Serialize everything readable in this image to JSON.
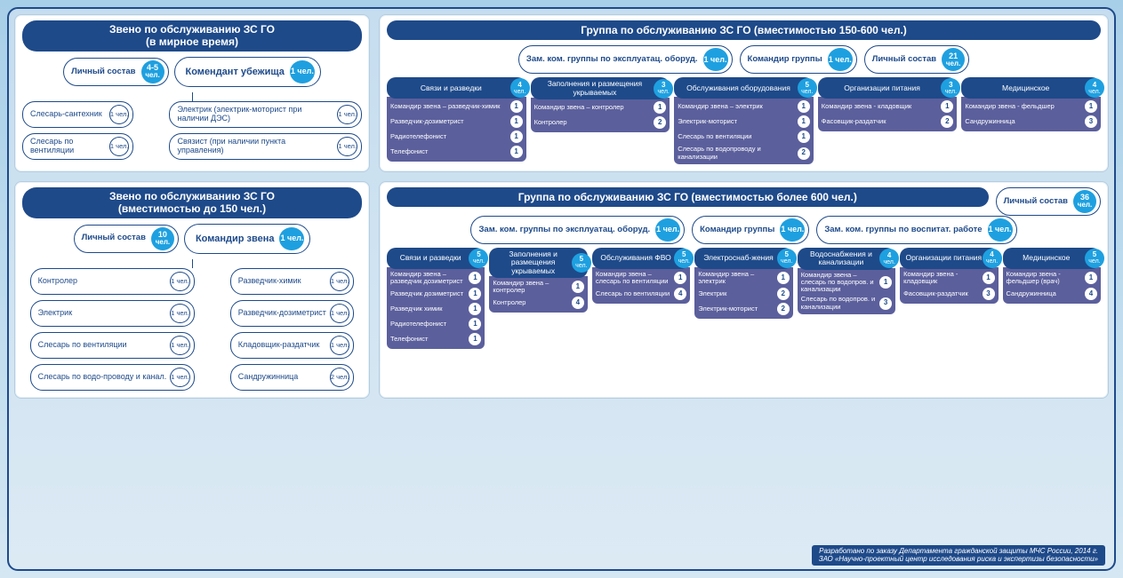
{
  "colors": {
    "header_bg": "#1e4a8a",
    "badge_bg": "#1ea0e0",
    "subbody_bg": "#5b5f9c",
    "panel_bg": "#ffffff",
    "page_bg_top": "#a8cfe8",
    "page_bg_bottom": "#d4e7f3"
  },
  "panel_a": {
    "title_l1": "Звено по обслуживанию ЗС ГО",
    "title_l2": "(в мирное время)",
    "staff_label": "Личный состав",
    "staff_count": "4-5",
    "staff_unit": "чел.",
    "commander": "Комендант убежища",
    "commander_count": "1 чел.",
    "left": [
      {
        "label": "Слесарь-сантехник",
        "count": "1 чел."
      },
      {
        "label": "Слесарь по вентиляции",
        "count": "1 чел."
      }
    ],
    "right": [
      {
        "label": "Электрик (электрик-моторист при наличии ДЭС)",
        "count": "1 чел."
      },
      {
        "label": "Связист (при наличии пункта управления)",
        "count": "1 чел."
      }
    ]
  },
  "panel_b": {
    "title": "Группа по обслуживанию ЗС ГО (вместимостью 150-600 чел.)",
    "top": [
      {
        "label": "Зам. ком. группы по эксплуатац. оборуд.",
        "count": "1 чел."
      },
      {
        "label": "Командир группы",
        "count": "1 чел."
      },
      {
        "label": "Личный состав",
        "count": "21",
        "unit": "чел."
      }
    ],
    "subs": [
      {
        "name": "Связи и разведки",
        "cnt": "4 чел.",
        "items": [
          {
            "t": "Командир звена – разведчик-химик",
            "n": "1"
          },
          {
            "t": "Разведчик-дозиметрист",
            "n": "1"
          },
          {
            "t": "Радиотелефонист",
            "n": "1"
          },
          {
            "t": "Телефонист",
            "n": "1"
          }
        ]
      },
      {
        "name": "Заполнения и размещения укрываемых",
        "cnt": "3 чел.",
        "items": [
          {
            "t": "Командир звена – контролер",
            "n": "1"
          },
          {
            "t": "Контролер",
            "n": "2"
          }
        ]
      },
      {
        "name": "Обслуживания оборудования",
        "cnt": "5 чел.",
        "items": [
          {
            "t": "Командир звена – электрик",
            "n": "1"
          },
          {
            "t": "Электрик-моторист",
            "n": "1"
          },
          {
            "t": "Слесарь по вентиляции",
            "n": "1"
          },
          {
            "t": "Слесарь по водопроводу и канализации",
            "n": "2"
          }
        ]
      },
      {
        "name": "Организации питания",
        "cnt": "3 чел.",
        "items": [
          {
            "t": "Командир звена - кладовщик",
            "n": "1"
          },
          {
            "t": "Фасовщик-раздатчик",
            "n": "2"
          }
        ]
      },
      {
        "name": "Медицинское",
        "cnt": "4 чел.",
        "items": [
          {
            "t": "Командир звена - фельдшер",
            "n": "1"
          },
          {
            "t": "Сандружинница",
            "n": "3"
          }
        ]
      }
    ]
  },
  "panel_c": {
    "title_l1": "Звено по обслуживанию ЗС ГО",
    "title_l2": "(вместимостью до 150 чел.)",
    "staff_label": "Личный состав",
    "staff_count": "10",
    "staff_unit": "чел.",
    "commander": "Командир звена",
    "commander_count": "1 чел.",
    "left": [
      {
        "label": "Контролер",
        "count": "1 чел."
      },
      {
        "label": "Электрик",
        "count": "1 чел."
      },
      {
        "label": "Слесарь по вентиляции",
        "count": "1 чел."
      },
      {
        "label": "Слесарь по водо-проводу и канал.",
        "count": "1 чел."
      }
    ],
    "right": [
      {
        "label": "Разведчик-химик",
        "count": "1 чел."
      },
      {
        "label": "Разведчик-дозиметрист",
        "count": "1 чел."
      },
      {
        "label": "Кладовщик-раздатчик",
        "count": "1 чел."
      },
      {
        "label": "Сандружинница",
        "count": "2 чел."
      }
    ]
  },
  "panel_d": {
    "title": "Группа по обслуживанию ЗС ГО (вместимостью более 600 чел.)",
    "side_staff": {
      "label": "Личный состав",
      "count": "36",
      "unit": "чел."
    },
    "top": [
      {
        "label": "Зам. ком. группы по эксплуатац. оборуд.",
        "count": "1 чел."
      },
      {
        "label": "Командир группы",
        "count": "1 чел."
      },
      {
        "label": "Зам. ком. группы по воспитат. работе",
        "count": "1 чел."
      }
    ],
    "subs": [
      {
        "name": "Связи и разведки",
        "cnt": "5 чел.",
        "items": [
          {
            "t": "Командир звена – разведчик дозиметрист",
            "n": "1"
          },
          {
            "t": "Разведчик дозиметрист",
            "n": "1"
          },
          {
            "t": "Разведчик химик",
            "n": "1"
          },
          {
            "t": "Радиотелефонист",
            "n": "1"
          },
          {
            "t": "Телефонист",
            "n": "1"
          }
        ]
      },
      {
        "name": "Заполнения и размещения укрываемых",
        "cnt": "5 чел.",
        "items": [
          {
            "t": "Командир звена – контролер",
            "n": "1"
          },
          {
            "t": "Контролер",
            "n": "4"
          }
        ]
      },
      {
        "name": "Обслуживания ФВО",
        "cnt": "5 чел.",
        "items": [
          {
            "t": "Командир звена – слесарь по вентиляции",
            "n": "1"
          },
          {
            "t": "Слесарь по вентиляции",
            "n": "4"
          }
        ]
      },
      {
        "name": "Электроснаб-жения",
        "cnt": "5 чел.",
        "items": [
          {
            "t": "Командир звена – электрик",
            "n": "1"
          },
          {
            "t": "Электрик",
            "n": "2"
          },
          {
            "t": "Электрик-моторист",
            "n": "2"
          }
        ]
      },
      {
        "name": "Водоснабжения и канализации",
        "cnt": "4 чел.",
        "items": [
          {
            "t": "Командир звена – слесарь по водопров. и канализации",
            "n": "1"
          },
          {
            "t": "Слесарь по водопров. и канализации",
            "n": "3"
          }
        ]
      },
      {
        "name": "Организации питания",
        "cnt": "4 чел.",
        "items": [
          {
            "t": "Командир звена - кладовщик",
            "n": "1"
          },
          {
            "t": "Фасовщик-раздатчик",
            "n": "3"
          }
        ]
      },
      {
        "name": "Медицинское",
        "cnt": "5 чел.",
        "items": [
          {
            "t": "Командир звена - фельдшер (врач)",
            "n": "1"
          },
          {
            "t": "Сандружинница",
            "n": "4"
          }
        ]
      }
    ]
  },
  "footer": {
    "l1": "Разработано по заказу Департамента гражданской защиты МЧС России, 2014 г.",
    "l2": "ЗАО «Научно-проектный центр исследования риска и экспертизы безопасности»"
  }
}
